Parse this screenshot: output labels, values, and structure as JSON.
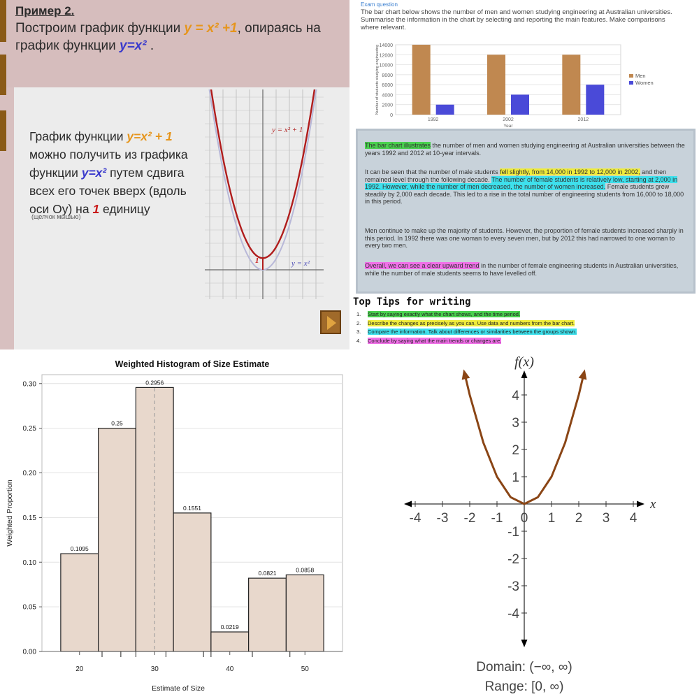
{
  "slide": {
    "example_label": "Пример 2.",
    "task_pre": "Построим график функции ",
    "task_func": "y = x² +1",
    "task_mid": ", опираясь на график функции ",
    "task_base": "y=x²",
    "task_end": " .",
    "desc_1": "График функции ",
    "desc_func": "y=x² + 1",
    "desc_2": " можно получить из графика функции ",
    "desc_base": "y=x²",
    "desc_3": " путем сдвига всех его точек вверх (вдоль оси Оу) на ",
    "desc_num": "1",
    "desc_4": " единицу",
    "small_note": "(щелчок мышью)",
    "curve_label_shifted": "y = x² + 1",
    "curve_label_base": "y = x²",
    "point_label": "1",
    "colors": {
      "shifted_curve": "#b01c1c",
      "base_curve": "#b8b8d8",
      "accent": "#e6951c",
      "base_text": "#3a3acc"
    }
  },
  "essay": {
    "question_title": "Exam question",
    "question_text": "The bar chart below shows the number of men and women studying engineering at Australian universities. Summarise the information in the chart by selecting and reporting the main features. Make comparisons where relevant.",
    "p1_marked": "The bar chart illustrates",
    "p1_rest": " the number of men and women studying engineering at Australian universities between the years 1992 and 2012 at 10-year intervals.",
    "p2_a": "It can be seen that the number of male students ",
    "p2_mark1": "fell slightly, from 14,000 in 1992 to 12,000 in 2002,",
    "p2_b": " and then remained level through the following decade. ",
    "p2_mark2": "The number of female students is relatively low, starting at 2,000 in 1992. However, while the number of men decreased, the number of women increased.",
    "p2_c": " Female students grew steadily by 2,000 each decade. This led to a rise in the total number of engineering students from 16,000 to 18,000 in this period.",
    "p3": "Men continue to make up the majority of students. However, the proportion of female students increased sharply in this period. In 1992 there was one woman to every seven men, but by 2012 this had narrowed to one woman to every two men.",
    "p4_marked": "Overall, we can see a clear upward trend",
    "p4_rest": " in the number of female engineering students in Australian universities, while the number of male students seems to have levelled off.",
    "tips_title": "Top Tips for writing",
    "tips": [
      {
        "n": "1.",
        "text": "Start by saying exactly what the chart shows, and the time period.",
        "color": "#49d04e"
      },
      {
        "n": "2.",
        "text": "Describe the changes as precisely as you can. Use data and numbers from the bar chart.",
        "color": "#f0ec3a"
      },
      {
        "n": "3.",
        "text": "Compare the information. Talk about differences or similarities between the groups shown.",
        "color": "#3ee0ec"
      },
      {
        "n": "4.",
        "text": "Conclude by saying what the main trends or changes are.",
        "color": "#f070e8"
      }
    ]
  },
  "chart_data": [
    {
      "type": "bar",
      "title": "",
      "ylabel": "Number of students studying engineering",
      "xlabel": "Year",
      "categories": [
        "1992",
        "2002",
        "2012"
      ],
      "series": [
        {
          "name": "Men",
          "values": [
            14000,
            12000,
            12000
          ],
          "color": "#c08850"
        },
        {
          "name": "Women",
          "values": [
            2000,
            4000,
            6000
          ],
          "color": "#4a4ad8"
        }
      ],
      "ylim": [
        0,
        14000
      ],
      "yticks": [
        "0",
        "2000",
        "4000",
        "6000",
        "8000",
        "10000",
        "12000",
        "14000"
      ],
      "grid": true,
      "legend": "right"
    },
    {
      "type": "bar",
      "title": "Weighted Histogram of Size Estimate",
      "xlabel": "Estimate of Size",
      "ylabel": "Weighted Proportion",
      "bins": [
        [
          17.5,
          22.5
        ],
        [
          22.5,
          27.5
        ],
        [
          27.5,
          32.5
        ],
        [
          32.5,
          37.5
        ],
        [
          37.5,
          42.5
        ],
        [
          42.5,
          47.5
        ],
        [
          47.5,
          52.5
        ]
      ],
      "values": [
        0.1095,
        0.25,
        0.2956,
        0.1551,
        0.0219,
        0.0821,
        0.0858
      ],
      "value_labels": [
        "0.1095",
        "0.25",
        "0.2956",
        "0.1551",
        "0.0219",
        "0.0821",
        "0.0858"
      ],
      "xticks": [
        "20",
        "30",
        "40",
        "50"
      ],
      "yticks": [
        "0.00",
        "0.05",
        "0.10",
        "0.15",
        "0.20",
        "0.25",
        "0.30"
      ],
      "xlim": [
        15,
        55
      ],
      "ylim": [
        0,
        0.31
      ],
      "mean_line": 30,
      "rug": [
        23,
        25.5,
        27.5,
        31.5,
        36.5,
        37.5,
        43,
        48
      ],
      "grid": true,
      "colors": {
        "bar_fill": "#e8d8cc",
        "bar_edge": "#222222"
      }
    },
    {
      "type": "line",
      "title": "",
      "ylabel": "f(x)",
      "xlabel": "x",
      "x": [
        -2.2,
        -2,
        -1.5,
        -1,
        -0.5,
        0,
        0.5,
        1,
        1.5,
        2,
        2.2
      ],
      "y": [
        4.84,
        4,
        2.25,
        1,
        0.25,
        0,
        0.25,
        1,
        2.25,
        4,
        4.84
      ],
      "xticks": [
        "-4",
        "-3",
        "-2",
        "-1",
        "0",
        "1",
        "2",
        "3",
        "4"
      ],
      "yticks": [
        "-4",
        "-3",
        "-2",
        "-1",
        "1",
        "2",
        "3",
        "4"
      ],
      "xlim": [
        -4,
        4
      ],
      "ylim": [
        -4,
        4
      ],
      "domain": "Domain: (−∞, ∞)",
      "range": "Range: [0, ∞)",
      "colors": {
        "curve": "#8a4515"
      }
    }
  ]
}
